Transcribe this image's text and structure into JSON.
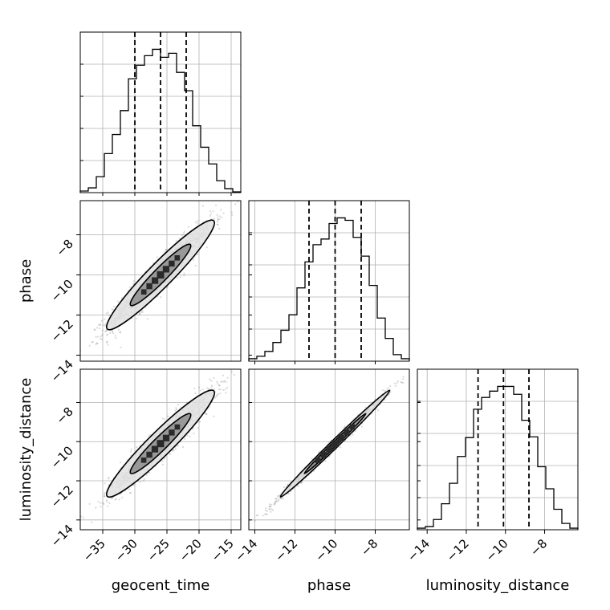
{
  "chart_data": {
    "type": "corner",
    "parameters": [
      "geocent_time",
      "phase",
      "luminosity_distance"
    ],
    "axis_labels": {
      "bottom": [
        "geocent_time",
        "phase",
        "luminosity_distance"
      ],
      "left": [
        "",
        "phase",
        "luminosity_distance"
      ]
    },
    "ranges": {
      "geocent_time": [
        -38.5,
        -13.5
      ],
      "phase": [
        -14.3,
        -6.3
      ],
      "luminosity_distance": [
        -14.5,
        -6.3
      ]
    },
    "ticks": {
      "geocent_time": [
        -35,
        -30,
        -25,
        -20,
        -15
      ],
      "phase": [
        -14,
        -12,
        -10,
        -8
      ],
      "luminosity_distance": [
        -14,
        -12,
        -10,
        -8
      ]
    },
    "tick_labels": {
      "geocent_time": [
        "−35",
        "−30",
        "−25",
        "−20",
        "−15"
      ],
      "phase": [
        "−14",
        "−12",
        "−10",
        "−8"
      ],
      "luminosity_distance": [
        "−14",
        "−12",
        "−10",
        "−8"
      ]
    },
    "histograms": [
      {
        "parameter": "geocent_time",
        "bin_edges": [
          -38.5,
          -37.25,
          -36.0,
          -34.75,
          -33.5,
          -32.25,
          -31.0,
          -29.75,
          -28.5,
          -27.25,
          -26.0,
          -24.75,
          -23.5,
          -22.25,
          -21.0,
          -19.75,
          -18.5,
          -17.25,
          -16.0,
          -14.75,
          -13.5
        ],
        "counts": [
          2,
          6,
          20,
          49,
          73,
          103,
          143,
          160,
          172,
          180,
          170,
          175,
          151,
          128,
          84,
          57,
          36,
          15,
          5,
          1
        ],
        "quantiles": [
          -30.0,
          -26.0,
          -22.0
        ]
      },
      {
        "parameter": "phase",
        "bin_edges": [
          -14.3,
          -13.9,
          -13.5,
          -13.1,
          -12.7,
          -12.3,
          -11.9,
          -11.5,
          -11.1,
          -10.7,
          -10.3,
          -9.9,
          -9.5,
          -9.1,
          -8.7,
          -8.3,
          -7.9,
          -7.5,
          -7.1,
          -6.7,
          -6.3
        ],
        "counts": [
          3,
          6,
          12,
          23,
          38,
          57,
          90,
          122,
          143,
          150,
          169,
          176,
          173,
          152,
          129,
          93,
          53,
          28,
          8,
          3
        ],
        "quantiles": [
          -11.3,
          -10.0,
          -8.7
        ]
      },
      {
        "parameter": "luminosity_distance",
        "bin_edges": [
          -14.5,
          -14.09,
          -13.68,
          -13.27,
          -12.86,
          -12.45,
          -12.04,
          -11.63,
          -11.22,
          -10.81,
          -10.4,
          -9.99,
          -9.58,
          -9.17,
          -8.76,
          -8.35,
          -7.94,
          -7.53,
          -7.12,
          -6.71,
          -6.3
        ],
        "counts": [
          2,
          4,
          13,
          33,
          59,
          93,
          117,
          153,
          168,
          176,
          182,
          182,
          172,
          139,
          118,
          80,
          52,
          26,
          8,
          2
        ],
        "quantiles": [
          -11.4,
          -10.1,
          -8.8
        ]
      }
    ],
    "scatter_panels": [
      {
        "x": "geocent_time",
        "y": "phase",
        "correlation": 0.95,
        "center": [
          -26.0,
          -10.0
        ],
        "sigma": [
          4.0,
          1.3
        ]
      },
      {
        "x": "geocent_time",
        "y": "luminosity_distance",
        "correlation": 0.95,
        "center": [
          -26.0,
          -10.1
        ],
        "sigma": [
          4.0,
          1.3
        ]
      },
      {
        "x": "phase",
        "y": "luminosity_distance",
        "correlation": 0.995,
        "center": [
          -10.0,
          -10.1
        ],
        "sigma": [
          1.3,
          1.3
        ]
      }
    ],
    "contour_levels": [
      0.5,
      0.9
    ],
    "grid": true,
    "colors": {
      "points": "#555555",
      "contour_line": "#000000",
      "fill_outer": "#e2e2e2",
      "fill_inner": "#8c8c8c",
      "fill_core": "#2a2a2a",
      "grid": "#b0b0b0"
    }
  }
}
